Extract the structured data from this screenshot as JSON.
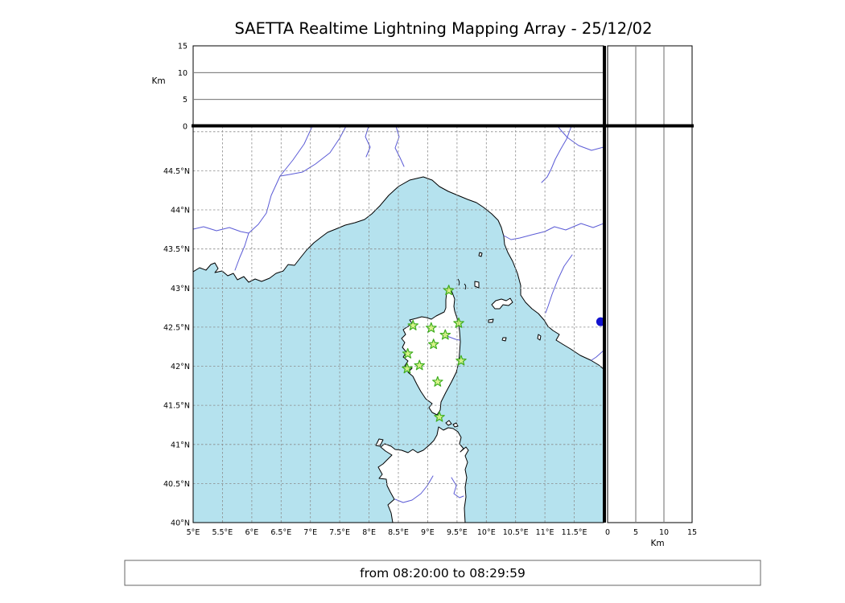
{
  "title": "SAETTA Realtime Lightning Mapping Array - 25/12/02",
  "footer": {
    "time_range": "from 08:20:00 to 08:29:59"
  },
  "colors": {
    "sea": "#b5e2ee",
    "land": "#ffffff",
    "coast": "#000000",
    "river": "#5b5bd6",
    "grid": "#8a8a8a",
    "panel_grid": "#3a3a3a",
    "station_fill": "#d2f177",
    "station_stroke": "#3fae1f",
    "marker": "#1212cf"
  },
  "chart_data": {
    "type": "scatter",
    "title": "SAETTA Realtime Lightning Mapping Array - 25/12/02",
    "map": {
      "lon_range": [
        5,
        12
      ],
      "lat_range": [
        40,
        45.07
      ],
      "lon_ticks": [
        {
          "value": 5,
          "label": "5°E"
        },
        {
          "value": 5.5,
          "label": "5.5°E"
        },
        {
          "value": 6,
          "label": "6°E"
        },
        {
          "value": 6.5,
          "label": "6.5°E"
        },
        {
          "value": 7,
          "label": "7°E"
        },
        {
          "value": 7.5,
          "label": "7.5°E"
        },
        {
          "value": 8,
          "label": "8°E"
        },
        {
          "value": 8.5,
          "label": "8.5°E"
        },
        {
          "value": 9,
          "label": "9°E"
        },
        {
          "value": 9.5,
          "label": "9.5°E"
        },
        {
          "value": 10,
          "label": "10°E"
        },
        {
          "value": 10.5,
          "label": "10.5°E"
        },
        {
          "value": 11,
          "label": "11°E"
        },
        {
          "value": 11.5,
          "label": "11.5°E"
        }
      ],
      "lat_ticks": [
        {
          "value": 44.5,
          "label": "44.5°N"
        },
        {
          "value": 44,
          "label": "44°N"
        },
        {
          "value": 43.5,
          "label": "43.5°N"
        },
        {
          "value": 43,
          "label": "43°N"
        },
        {
          "value": 42.5,
          "label": "42.5°N"
        },
        {
          "value": 42,
          "label": "42°N"
        },
        {
          "value": 41.5,
          "label": "41.5°N"
        },
        {
          "value": 41,
          "label": "41°N"
        },
        {
          "value": 40.5,
          "label": "40.5°N"
        },
        {
          "value": 40,
          "label": "40°N"
        }
      ],
      "lon_grid": [
        5.5,
        6,
        6.5,
        7,
        7.5,
        8,
        8.5,
        9,
        9.5,
        10,
        10.5,
        11,
        11.5
      ],
      "lat_grid": [
        40.5,
        41,
        41.5,
        42,
        42.5,
        43,
        43.5,
        44,
        44.5,
        45
      ],
      "grid_style": "dashed"
    },
    "altitude_axis": {
      "unit": "Km",
      "range": [
        0,
        15
      ],
      "ticks": [
        {
          "value": 0,
          "label": "0"
        },
        {
          "value": 5,
          "label": "5"
        },
        {
          "value": 10,
          "label": "10"
        },
        {
          "value": 15,
          "label": "15"
        }
      ],
      "gridlines": [
        5,
        10
      ]
    },
    "stations": [
      {
        "lon": 9.36,
        "lat": 42.97
      },
      {
        "lon": 8.75,
        "lat": 42.52
      },
      {
        "lon": 9.06,
        "lat": 42.49
      },
      {
        "lon": 9.53,
        "lat": 42.55
      },
      {
        "lon": 9.3,
        "lat": 42.4
      },
      {
        "lon": 9.1,
        "lat": 42.28
      },
      {
        "lon": 8.66,
        "lat": 42.16
      },
      {
        "lon": 9.57,
        "lat": 42.07
      },
      {
        "lon": 8.86,
        "lat": 42.01
      },
      {
        "lon": 8.65,
        "lat": 41.97
      },
      {
        "lon": 9.17,
        "lat": 41.8
      },
      {
        "lon": 9.2,
        "lat": 41.35
      }
    ],
    "marker_point": {
      "lon": 11.95,
      "lat": 42.57
    }
  }
}
